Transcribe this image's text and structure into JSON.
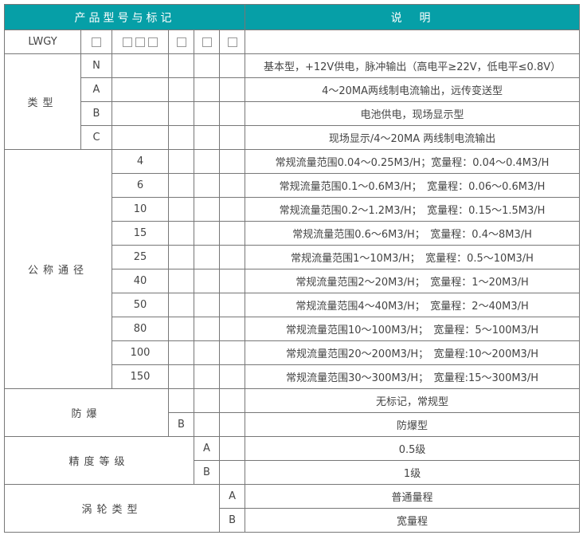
{
  "header": {
    "left": "产品型号与标记",
    "right": "说　明"
  },
  "model": {
    "code": "LWGY",
    "box_icon": "empty-square"
  },
  "type": {
    "label": "类型",
    "rows": [
      {
        "code": "N",
        "desc": "基本型，+12V供电，脉冲输出（高电平≥22V，低电平≤0.8V）"
      },
      {
        "code": "A",
        "desc": "4～20MA两线制电流输出，远传变送型"
      },
      {
        "code": "B",
        "desc": "电池供电，现场显示型"
      },
      {
        "code": "C",
        "desc": "现场显示/4～20MA 两线制电流输出"
      }
    ]
  },
  "diameter": {
    "label": "公称通径",
    "rows": [
      {
        "code": "4",
        "desc": "常规流量范围0.04～0.25M3/H；宽量程：0.04～0.4M3/H"
      },
      {
        "code": "6",
        "desc": "常规流量范围0.1～0.6M3/H；　宽量程：0.06～0.6M3/H"
      },
      {
        "code": "10",
        "desc": "常规流量范围0.2～1.2M3/H；　宽量程：0.15～1.5M3/H"
      },
      {
        "code": "15",
        "desc": "常规流量范围0.6～6M3/H；　宽量程：0.4～8M3/H"
      },
      {
        "code": "25",
        "desc": "常规流量范围1～10M3/H；　宽量程：0.5～10M3/H"
      },
      {
        "code": "40",
        "desc": "常规流量范围2～20M3/H；　宽量程：1～20M3/H"
      },
      {
        "code": "50",
        "desc": "常规流量范围4～40M3/H；　宽量程：2～40M3/H"
      },
      {
        "code": "80",
        "desc": "常规流量范围10～100M3/H；　宽量程：5～100M3/H"
      },
      {
        "code": "100",
        "desc": "常规流量范围20～200M3/H；　宽量程:10～200M3/H"
      },
      {
        "code": "150",
        "desc": "常规流量范围30～300M3/H；　宽量程:15～300M3/H"
      }
    ]
  },
  "explosion": {
    "label": "防爆",
    "rows": [
      {
        "code": "",
        "desc": "无标记，常规型"
      },
      {
        "code": "B",
        "desc": "防爆型"
      }
    ]
  },
  "accuracy": {
    "label": "精度等级",
    "rows": [
      {
        "code": "A",
        "desc": "0.5级"
      },
      {
        "code": "B",
        "desc": "1级"
      }
    ]
  },
  "turbine": {
    "label": "涡轮类型",
    "rows": [
      {
        "code": "A",
        "desc": "普通量程"
      },
      {
        "code": "B",
        "desc": "宽量程"
      }
    ]
  },
  "colors": {
    "header_bg": "#069fa7",
    "header_text": "#ffffff",
    "text": "#444444",
    "border": "#777777"
  }
}
